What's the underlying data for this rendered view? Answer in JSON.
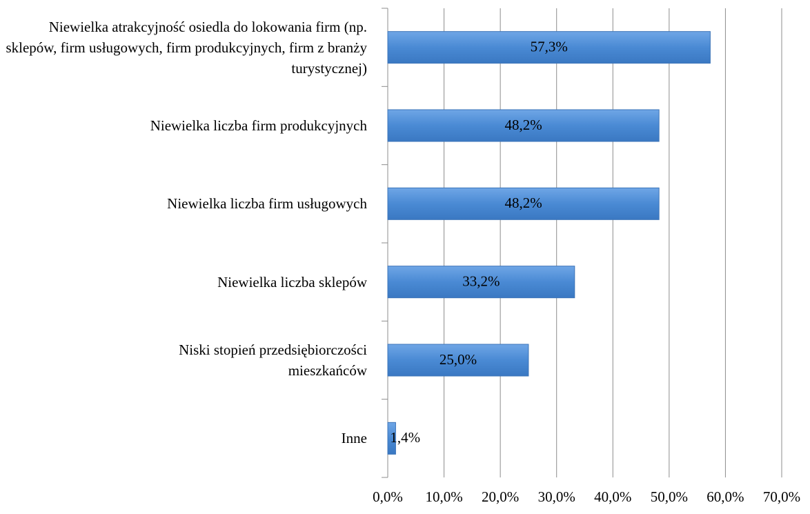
{
  "chart_data": {
    "type": "bar",
    "orientation": "horizontal",
    "categories": [
      "Niewielka atrakcyjność osiedla do lokowania firm (np. sklepów, firm usługowych, firm produkcyjnych, firm z branży turystycznej)",
      "Niewielka liczba firm produkcyjnych",
      "Niewielka liczba firm usługowych",
      "Niewielka liczba sklepów",
      "Niski stopień przedsiębiorczości mieszkańców",
      "Inne"
    ],
    "values": [
      57.3,
      48.2,
      48.2,
      33.2,
      25.0,
      1.4
    ],
    "value_labels": [
      "57,3%",
      "48,2%",
      "48,2%",
      "33,2%",
      "25,0%",
      "1,4%"
    ],
    "color": "#4a8ad4",
    "xlim": [
      0,
      70
    ],
    "xticks": [
      {
        "value": 0,
        "label": "0,0%"
      },
      {
        "value": 10,
        "label": "10,0%"
      },
      {
        "value": 20,
        "label": "20,0%"
      },
      {
        "value": 30,
        "label": "30,0%"
      },
      {
        "value": 40,
        "label": "40,0%"
      },
      {
        "value": 50,
        "label": "50,0%"
      },
      {
        "value": 60,
        "label": "60,0%"
      },
      {
        "value": 70,
        "label": "70,0%"
      }
    ],
    "grid": true
  }
}
